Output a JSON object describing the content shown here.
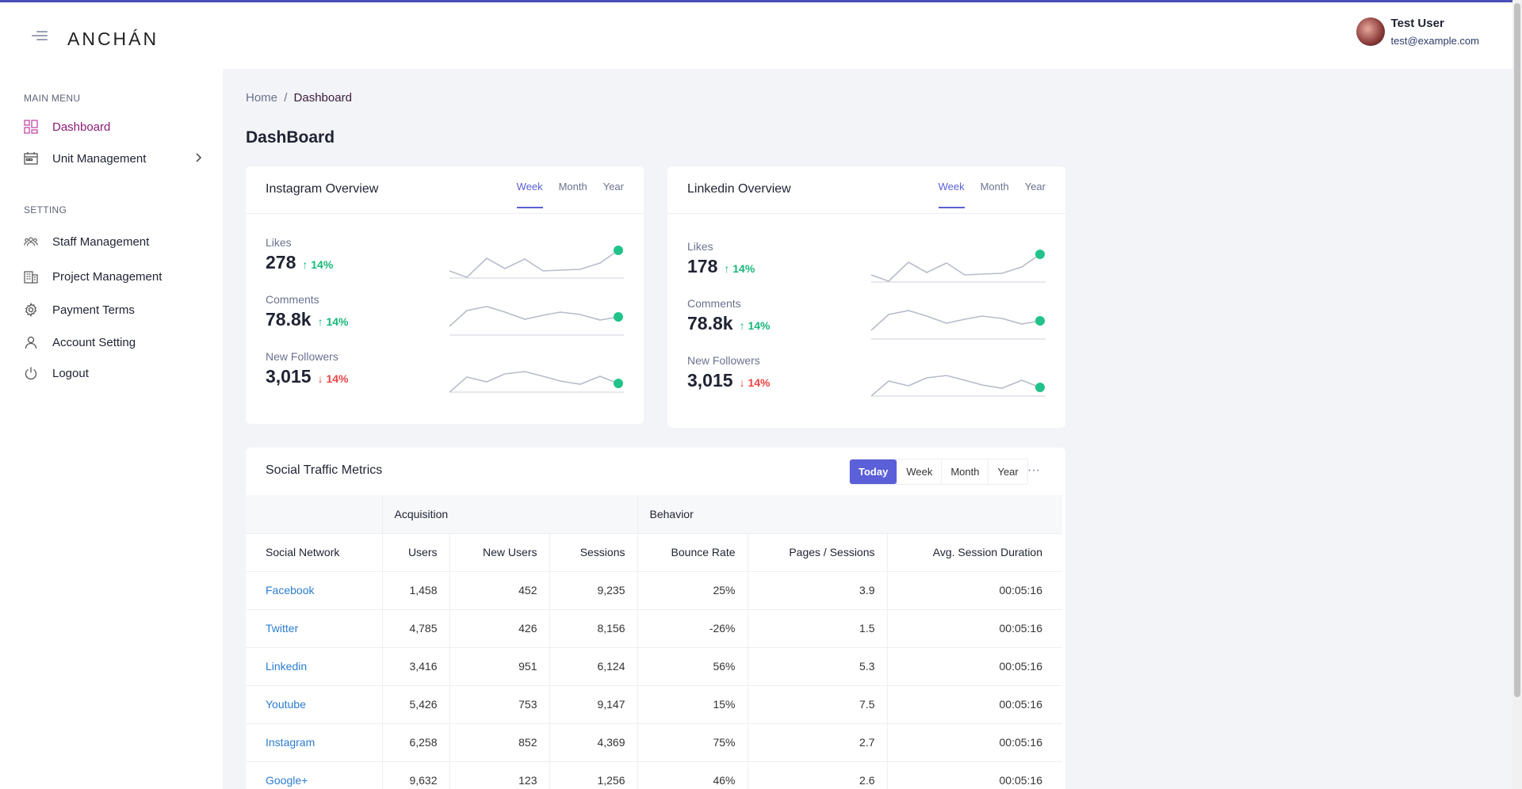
{
  "header": {
    "logo": "ANCHÁN",
    "user_name": "Test User",
    "user_email": "test@example.com"
  },
  "sidebar": {
    "main_menu_title": "MAIN MENU",
    "main_items": [
      {
        "label": "Dashboard",
        "icon": "dashboard-grid-icon"
      },
      {
        "label": "Unit Management",
        "icon": "unit-calendar-icon"
      }
    ],
    "setting_title": "SETTING",
    "setting_items": [
      {
        "label": "Staff Management",
        "icon": "staff-group-icon"
      },
      {
        "label": "Project Management",
        "icon": "project-building-icon"
      },
      {
        "label": "Payment Terms",
        "icon": "gear-icon"
      },
      {
        "label": "Account Setting",
        "icon": "user-icon"
      },
      {
        "label": "Logout",
        "icon": "power-icon"
      }
    ]
  },
  "breadcrumb": {
    "home": "Home",
    "separator": "/",
    "current": "Dashboard"
  },
  "page_title": "DashBoard",
  "instagram": {
    "title": "Instagram Overview",
    "tabs": [
      "Week",
      "Month",
      "Year"
    ],
    "metrics": [
      {
        "label": "Likes",
        "value": "278",
        "change": "↑ 14%"
      },
      {
        "label": "Comments",
        "value": "78.8k",
        "change": "↑ 14%"
      },
      {
        "label": "New Followers",
        "value": "3,015",
        "change": "↓ 14%"
      }
    ]
  },
  "linkedin": {
    "title": "Linkedin Overview",
    "tabs": [
      "Week",
      "Month",
      "Year"
    ],
    "metrics": [
      {
        "label": "Likes",
        "value": "178",
        "change": "↑ 14%"
      },
      {
        "label": "Comments",
        "value": "78.8k",
        "change": "↑ 14%"
      },
      {
        "label": "New Followers",
        "value": "3,015",
        "change": "↓ 14%"
      }
    ]
  },
  "traffic": {
    "title": "Social Traffic Metrics",
    "segments": [
      "Today",
      "Week",
      "Month",
      "Year"
    ],
    "more": "···",
    "group_headers": [
      "",
      "Acquisition",
      "Behavior"
    ],
    "columns": [
      "Social Network",
      "Users",
      "New Users",
      "Sessions",
      "Bounce Rate",
      "Pages / Sessions",
      "Avg. Session Duration"
    ],
    "rows": [
      [
        "Facebook",
        "1,458",
        "452",
        "9,235",
        "25%",
        "3.9",
        "00:05:16"
      ],
      [
        "Twitter",
        "4,785",
        "426",
        "8,156",
        "-26%",
        "1.5",
        "00:05:16"
      ],
      [
        "Linkedin",
        "3,416",
        "951",
        "6,124",
        "56%",
        "5.3",
        "00:05:16"
      ],
      [
        "Youtube",
        "5,426",
        "753",
        "9,147",
        "15%",
        "7.5",
        "00:05:16"
      ],
      [
        "Instagram",
        "6,258",
        "852",
        "4,369",
        "75%",
        "2.7",
        "00:05:16"
      ],
      [
        "Google+",
        "9,632",
        "123",
        "1,256",
        "46%",
        "2.6",
        "00:05:16"
      ]
    ]
  },
  "colors": {
    "accent": "#5b5fd8",
    "up": "#18b779",
    "down": "#ee4444",
    "link": "#2b7ccf",
    "active_nav": "#8a1a7a"
  }
}
